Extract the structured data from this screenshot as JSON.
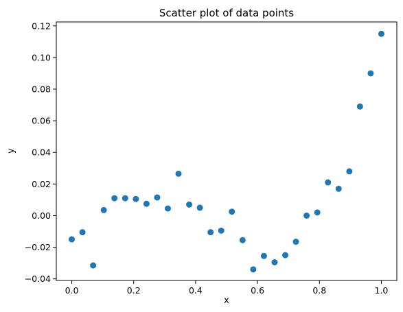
{
  "chart_data": {
    "type": "scatter",
    "title": "Scatter plot of data points",
    "xlabel": "x",
    "ylabel": "y",
    "xlim": [
      -0.05,
      1.05
    ],
    "ylim": [
      -0.041,
      0.1225
    ],
    "xticks": [
      0.0,
      0.2,
      0.4,
      0.6,
      0.8,
      1.0
    ],
    "xtick_labels": [
      "0.0",
      "0.2",
      "0.4",
      "0.6",
      "0.8",
      "1.0"
    ],
    "yticks": [
      -0.04,
      -0.02,
      0.0,
      0.02,
      0.04,
      0.06,
      0.08,
      0.1,
      0.12
    ],
    "ytick_labels": [
      "−0.04",
      "−0.02",
      "0.00",
      "0.02",
      "0.04",
      "0.06",
      "0.08",
      "0.10",
      "0.12"
    ],
    "grid": false,
    "marker_color": "#1f77b4",
    "points": [
      {
        "x": 0.0,
        "y": -0.015
      },
      {
        "x": 0.0345,
        "y": -0.0105
      },
      {
        "x": 0.069,
        "y": -0.0315
      },
      {
        "x": 0.1034,
        "y": 0.0035
      },
      {
        "x": 0.1379,
        "y": 0.011
      },
      {
        "x": 0.1724,
        "y": 0.011
      },
      {
        "x": 0.2069,
        "y": 0.0105
      },
      {
        "x": 0.2414,
        "y": 0.0075
      },
      {
        "x": 0.2759,
        "y": 0.0115
      },
      {
        "x": 0.3103,
        "y": 0.0045
      },
      {
        "x": 0.3448,
        "y": 0.0265
      },
      {
        "x": 0.3793,
        "y": 0.007
      },
      {
        "x": 0.4138,
        "y": 0.005
      },
      {
        "x": 0.4483,
        "y": -0.0105
      },
      {
        "x": 0.4828,
        "y": -0.0095
      },
      {
        "x": 0.5172,
        "y": 0.0025
      },
      {
        "x": 0.5517,
        "y": -0.0155
      },
      {
        "x": 0.5862,
        "y": -0.034
      },
      {
        "x": 0.6207,
        "y": -0.0255
      },
      {
        "x": 0.6552,
        "y": -0.0295
      },
      {
        "x": 0.6897,
        "y": -0.025
      },
      {
        "x": 0.7241,
        "y": -0.0165
      },
      {
        "x": 0.7586,
        "y": 0.0
      },
      {
        "x": 0.7931,
        "y": 0.002
      },
      {
        "x": 0.8276,
        "y": 0.021
      },
      {
        "x": 0.8621,
        "y": 0.017
      },
      {
        "x": 0.8966,
        "y": 0.028
      },
      {
        "x": 0.931,
        "y": 0.069
      },
      {
        "x": 0.9655,
        "y": 0.09
      },
      {
        "x": 1.0,
        "y": 0.115
      }
    ]
  }
}
